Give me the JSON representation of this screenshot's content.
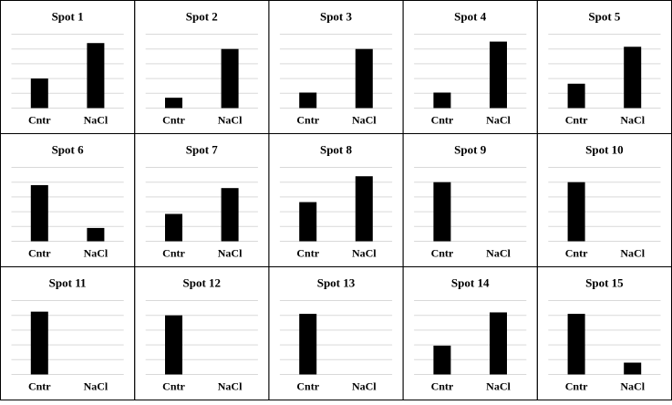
{
  "chart_data": [
    {
      "type": "bar",
      "title": "Spot 1",
      "categories": [
        "Cntr",
        "NaCl"
      ],
      "values": [
        0.4,
        0.88
      ],
      "ylim": [
        0,
        1
      ],
      "gridlines": 5
    },
    {
      "type": "bar",
      "title": "Spot 2",
      "categories": [
        "Cntr",
        "NaCl"
      ],
      "values": [
        0.14,
        0.8
      ],
      "ylim": [
        0,
        1
      ],
      "gridlines": 5
    },
    {
      "type": "bar",
      "title": "Spot 3",
      "categories": [
        "Cntr",
        "NaCl"
      ],
      "values": [
        0.21,
        0.8
      ],
      "ylim": [
        0,
        1
      ],
      "gridlines": 5
    },
    {
      "type": "bar",
      "title": "Spot 4",
      "categories": [
        "Cntr",
        "NaCl"
      ],
      "values": [
        0.21,
        0.9
      ],
      "ylim": [
        0,
        1
      ],
      "gridlines": 5
    },
    {
      "type": "bar",
      "title": "Spot 5",
      "categories": [
        "Cntr",
        "NaCl"
      ],
      "values": [
        0.33,
        0.83
      ],
      "ylim": [
        0,
        1
      ],
      "gridlines": 5
    },
    {
      "type": "bar",
      "title": "Spot 6",
      "categories": [
        "Cntr",
        "NaCl"
      ],
      "values": [
        0.76,
        0.18
      ],
      "ylim": [
        0,
        1
      ],
      "gridlines": 5
    },
    {
      "type": "bar",
      "title": "Spot 7",
      "categories": [
        "Cntr",
        "NaCl"
      ],
      "values": [
        0.37,
        0.72
      ],
      "ylim": [
        0,
        1
      ],
      "gridlines": 5
    },
    {
      "type": "bar",
      "title": "Spot 8",
      "categories": [
        "Cntr",
        "NaCl"
      ],
      "values": [
        0.53,
        0.88
      ],
      "ylim": [
        0,
        1
      ],
      "gridlines": 5
    },
    {
      "type": "bar",
      "title": "Spot 9",
      "categories": [
        "Cntr",
        "NaCl"
      ],
      "values": [
        0.8,
        0.0
      ],
      "ylim": [
        0,
        1
      ],
      "gridlines": 5
    },
    {
      "type": "bar",
      "title": "Spot 10",
      "categories": [
        "Cntr",
        "NaCl"
      ],
      "values": [
        0.8,
        0.0
      ],
      "ylim": [
        0,
        1
      ],
      "gridlines": 5
    },
    {
      "type": "bar",
      "title": "Spot 11",
      "categories": [
        "Cntr",
        "NaCl"
      ],
      "values": [
        0.85,
        0.0
      ],
      "ylim": [
        0,
        1
      ],
      "gridlines": 5
    },
    {
      "type": "bar",
      "title": "Spot 12",
      "categories": [
        "Cntr",
        "NaCl"
      ],
      "values": [
        0.8,
        0.0
      ],
      "ylim": [
        0,
        1
      ],
      "gridlines": 5
    },
    {
      "type": "bar",
      "title": "Spot 13",
      "categories": [
        "Cntr",
        "NaCl"
      ],
      "values": [
        0.82,
        0.0
      ],
      "ylim": [
        0,
        1
      ],
      "gridlines": 5
    },
    {
      "type": "bar",
      "title": "Spot 14",
      "categories": [
        "Cntr",
        "NaCl"
      ],
      "values": [
        0.39,
        0.84
      ],
      "ylim": [
        0,
        1
      ],
      "gridlines": 5
    },
    {
      "type": "bar",
      "title": "Spot 15",
      "categories": [
        "Cntr",
        "NaCl"
      ],
      "values": [
        0.82,
        0.16
      ],
      "ylim": [
        0,
        1
      ],
      "gridlines": 5
    }
  ],
  "colors": {
    "bar": "#000000",
    "grid": "#d9d9d9",
    "border": "#000000"
  }
}
